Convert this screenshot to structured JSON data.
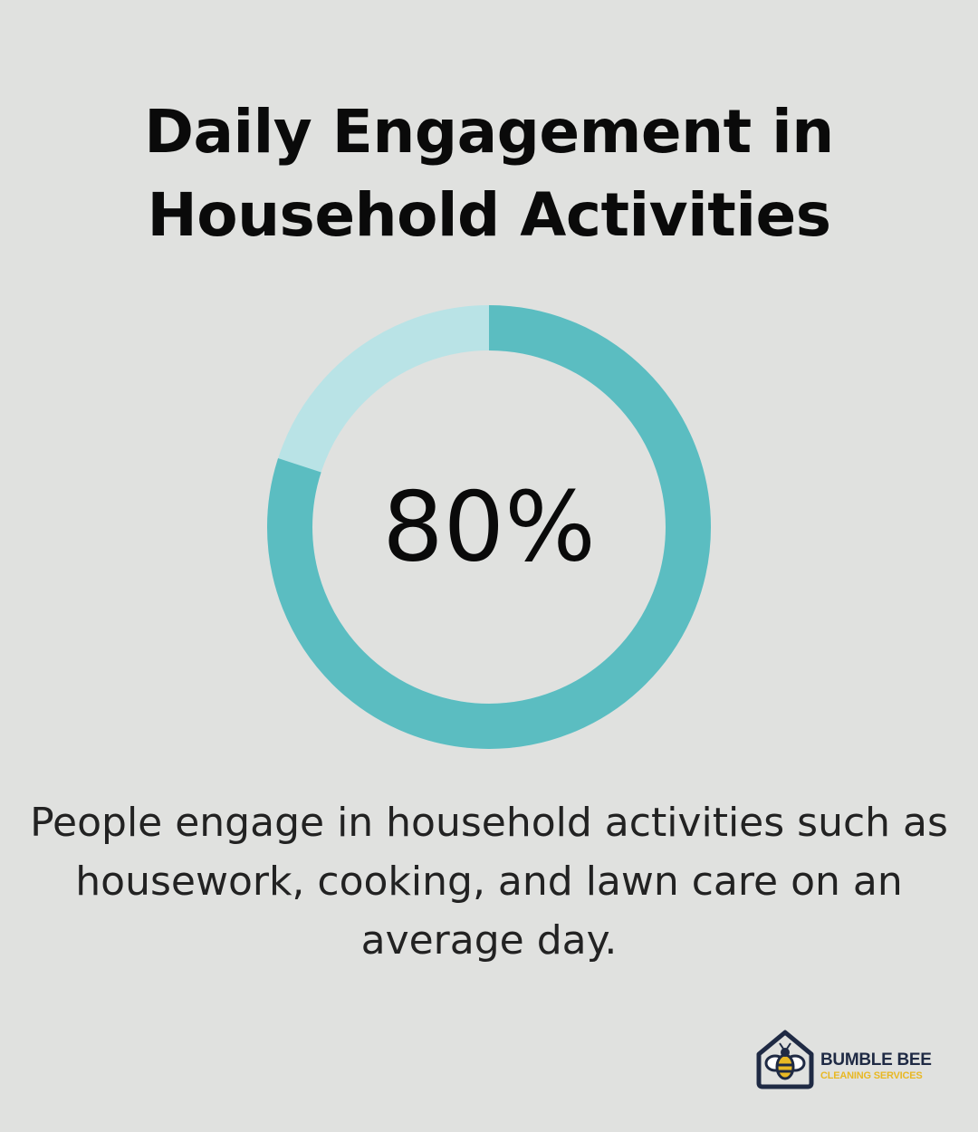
{
  "title_lines": [
    "Daily Engagement in",
    "Household Activities"
  ],
  "chart_data": {
    "type": "pie",
    "values": [
      80,
      20
    ],
    "center_label": "80%",
    "colors": {
      "filled": "#5bbdc1",
      "remaining": "#b9e3e6"
    }
  },
  "caption_lines": [
    "People engage in household activities such as",
    "housework, cooking, and lawn care on an",
    "average day."
  ],
  "logo": {
    "name": "BUMBLE BEE",
    "subtitle": "CLEANING SERVICES",
    "icon": "bee-house-icon",
    "colors": {
      "dark": "#1f2a44",
      "accent": "#e8b824"
    }
  }
}
